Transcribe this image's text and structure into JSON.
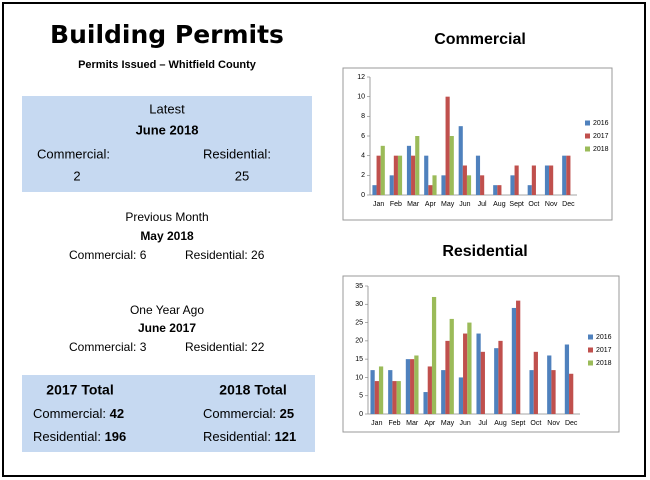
{
  "header": {
    "title": "Building Permits",
    "subtitle": "Permits Issued – Whitfield County"
  },
  "latest": {
    "heading": "Latest",
    "period": "June 2018",
    "commercial_label": "Commercial:",
    "residential_label": "Residential:",
    "commercial": 2,
    "residential": 25
  },
  "previous_month": {
    "heading": "Previous Month",
    "period": "May 2018",
    "commercial_label": "Commercial:",
    "commercial": 6,
    "residential_label": "Residential:",
    "residential": 26
  },
  "year_ago": {
    "heading": "One Year Ago",
    "period": "June 2017",
    "commercial_label": "Commercial:",
    "commercial": 3,
    "residential_label": "Residential:",
    "residential": 22
  },
  "totals": [
    {
      "heading": "2017 Total",
      "commercial_label": "Commercial:",
      "commercial": 42,
      "residential_label": "Residential:",
      "residential": 196
    },
    {
      "heading": "2018 Total",
      "commercial_label": "Commercial:",
      "commercial": 25,
      "residential_label": "Residential:",
      "residential": 121
    }
  ],
  "chart_data": [
    {
      "type": "bar",
      "title": "Commercial",
      "categories": [
        "Jan",
        "Feb",
        "Mar",
        "Apr",
        "May",
        "Jun",
        "Jul",
        "Aug",
        "Sept",
        "Oct",
        "Nov",
        "Dec"
      ],
      "series": [
        {
          "name": "2016",
          "color": "#4f81bd",
          "values": [
            1,
            2,
            5,
            4,
            2,
            7,
            4,
            1,
            2,
            1,
            3,
            4
          ]
        },
        {
          "name": "2017",
          "color": "#c0504d",
          "values": [
            4,
            4,
            4,
            1,
            10,
            3,
            2,
            1,
            3,
            3,
            3,
            4
          ]
        },
        {
          "name": "2018",
          "color": "#9bbb59",
          "values": [
            5,
            4,
            6,
            2,
            6,
            2,
            null,
            null,
            null,
            null,
            null,
            null
          ]
        }
      ],
      "ylim": [
        0,
        12
      ],
      "yticks": [
        0,
        2,
        4,
        6,
        8,
        10,
        12
      ],
      "legend": "right"
    },
    {
      "type": "bar",
      "title": "Residential",
      "categories": [
        "Jan",
        "Feb",
        "Mar",
        "Apr",
        "May",
        "Jun",
        "Jul",
        "Aug",
        "Sept",
        "Oct",
        "Nov",
        "Dec"
      ],
      "series": [
        {
          "name": "2016",
          "color": "#4f81bd",
          "values": [
            12,
            12,
            15,
            6,
            12,
            10,
            22,
            18,
            29,
            12,
            16,
            19
          ]
        },
        {
          "name": "2017",
          "color": "#c0504d",
          "values": [
            9,
            9,
            15,
            13,
            20,
            22,
            17,
            20,
            31,
            17,
            12,
            11
          ]
        },
        {
          "name": "2018",
          "color": "#9bbb59",
          "values": [
            13,
            9,
            16,
            32,
            26,
            25,
            null,
            null,
            null,
            null,
            null,
            null
          ]
        }
      ],
      "ylim": [
        0,
        35
      ],
      "yticks": [
        0,
        5,
        10,
        15,
        20,
        25,
        30,
        35
      ],
      "legend": "right"
    }
  ]
}
